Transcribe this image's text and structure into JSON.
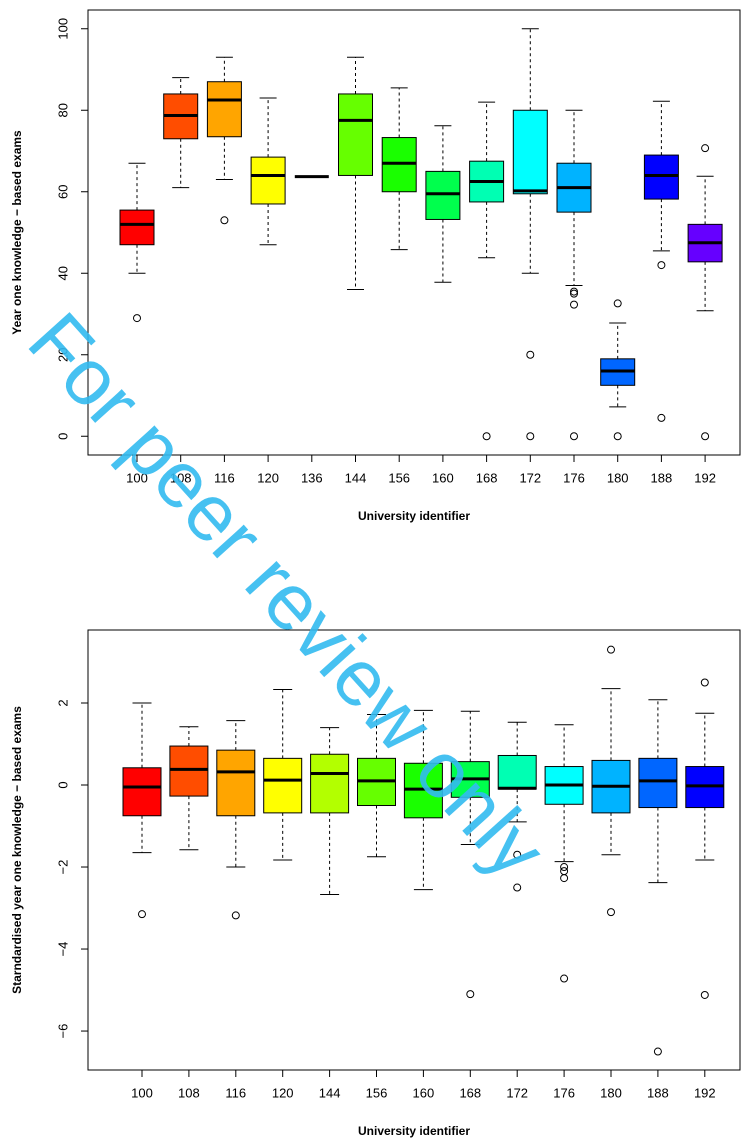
{
  "watermark": "For peer review only",
  "chart_data": [
    {
      "type": "boxplot",
      "y_label": "Year one knowledge − based exams",
      "x_label": "University identifier",
      "categories": [
        "100",
        "108",
        "116",
        "120",
        "136",
        "144",
        "156",
        "160",
        "168",
        "172",
        "176",
        "180",
        "188",
        "192"
      ],
      "colors": [
        "#ff0000",
        "#ff4d00",
        "#ffa500",
        "#ffff00",
        "#ccff00",
        "#66ff00",
        "#1aff00",
        "#00ff4d",
        "#00ffb3",
        "#00ffff",
        "#00b3ff",
        "#0066ff",
        "#0000ff",
        "#6600ff"
      ],
      "whisker_high": [
        67,
        88,
        93,
        83,
        63.7,
        93,
        85.5,
        76.2,
        82,
        100,
        80,
        27.8,
        82.2,
        63.8
      ],
      "q3": [
        55.5,
        84,
        87,
        68.5,
        63.7,
        84,
        73.3,
        65,
        67.5,
        80,
        67,
        19,
        69,
        52
      ],
      "median": [
        52,
        78.7,
        82.5,
        64,
        63.7,
        77.5,
        67,
        59.5,
        62.5,
        60.2,
        61,
        16,
        64,
        47.5
      ],
      "q1": [
        47,
        73,
        73.5,
        57,
        63.7,
        64,
        60,
        53.2,
        57.5,
        59.5,
        55,
        12.5,
        58.2,
        42.8
      ],
      "whisker_low": [
        40,
        61,
        63,
        47,
        63.7,
        36,
        45.8,
        37.8,
        43.8,
        40,
        37,
        7.2,
        45.5,
        30.8
      ],
      "outliers": [
        [
          29
        ],
        [],
        [
          53
        ],
        [],
        [],
        [],
        [],
        [],
        [
          0
        ],
        [
          20,
          0
        ],
        [
          35.5,
          35,
          32.3,
          0
        ],
        [
          32.6,
          0
        ],
        [
          42,
          4.5
        ],
        [
          70.7,
          0
        ]
      ],
      "ylim": [
        -4.6,
        104.6
      ],
      "yticks": [
        0,
        20,
        40,
        60,
        80,
        100
      ]
    },
    {
      "type": "boxplot",
      "y_label": "Starndardised year one knowledge − based exams",
      "x_label": "University identifier",
      "categories": [
        "100",
        "108",
        "116",
        "120",
        "144",
        "156",
        "160",
        "168",
        "172",
        "176",
        "180",
        "188",
        "192"
      ],
      "colors": [
        "#ff0000",
        "#ff4d00",
        "#ffa500",
        "#ffff00",
        "#b3ff00",
        "#66ff00",
        "#1aff00",
        "#00ff4d",
        "#00ffb3",
        "#00ffff",
        "#00b3ff",
        "#0066ff",
        "#0000ff"
      ],
      "whisker_high": [
        2.0,
        1.42,
        1.57,
        2.33,
        1.4,
        1.72,
        1.82,
        1.8,
        1.53,
        1.47,
        2.35,
        2.08,
        1.75
      ],
      "q3": [
        0.42,
        0.95,
        0.85,
        0.65,
        0.75,
        0.65,
        0.53,
        0.57,
        0.72,
        0.45,
        0.6,
        0.65,
        0.45
      ],
      "median": [
        -0.05,
        0.38,
        0.32,
        0.12,
        0.28,
        0.1,
        -0.1,
        0.15,
        -0.08,
        0.0,
        -0.03,
        0.1,
        -0.02
      ],
      "q1": [
        -0.75,
        -0.27,
        -0.75,
        -0.68,
        -0.68,
        -0.5,
        -0.8,
        -0.3,
        -0.1,
        -0.47,
        -0.68,
        -0.55,
        -0.55
      ],
      "whisker_low": [
        -1.65,
        -1.58,
        -2.0,
        -1.83,
        -2.67,
        -1.75,
        -2.55,
        -1.45,
        -0.9,
        -1.87,
        -1.7,
        -2.38,
        -1.83
      ],
      "outliers": [
        [
          -3.15
        ],
        [],
        [
          -3.18
        ],
        [],
        [],
        [],
        [],
        [
          -5.1
        ],
        [
          -1.7,
          -2.5
        ],
        [
          -2.0,
          -2.1,
          -2.27,
          -4.72
        ],
        [
          3.3,
          -3.1
        ],
        [
          -6.5
        ],
        [
          2.5,
          -5.12
        ]
      ],
      "ylim": [
        -6.95,
        3.78
      ],
      "yticks": [
        {
          "value": -6,
          "label": "−6"
        },
        {
          "value": -4,
          "label": "−4"
        },
        {
          "value": -2,
          "label": "−2"
        },
        0,
        2
      ]
    }
  ]
}
